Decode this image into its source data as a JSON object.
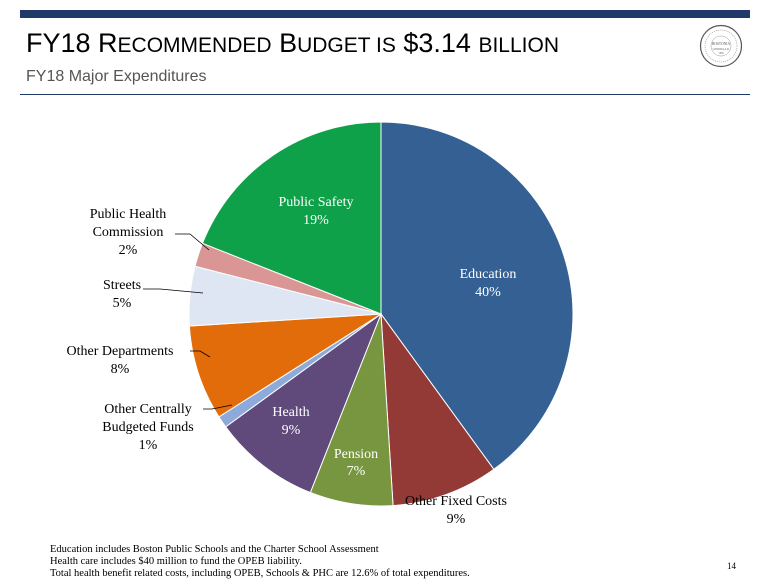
{
  "header": {
    "title_parts": [
      "FY18 R",
      "ECOMMENDED",
      " B",
      "UDGET IS",
      " $3.14 ",
      "BILLION"
    ],
    "subtitle": "FY18 Major Expenditures",
    "seal_text": [
      "BOSTONIA",
      "CONDITA A.D.",
      "1630"
    ]
  },
  "chart_data": {
    "type": "pie",
    "title": "",
    "slices": [
      {
        "name": "Education",
        "label": "Education",
        "value": 40,
        "pct": "40%",
        "color": "#346094"
      },
      {
        "name": "Other Fixed Costs",
        "label": "Other Fixed Costs",
        "value": 9,
        "pct": "9%",
        "color": "#943a36"
      },
      {
        "name": "Pension",
        "label": "Pension",
        "value": 7,
        "pct": "7%",
        "color": "#77963f"
      },
      {
        "name": "Health",
        "label": "Health",
        "value": 9,
        "pct": "9%",
        "color": "#5f4a7b"
      },
      {
        "name": "Other Centrally Budgeted Funds",
        "label": "Other Centrally Budgeted Funds",
        "value": 1,
        "pct": "1%",
        "color": "#8eaadb"
      },
      {
        "name": "Other Departments",
        "label": "Other Departments",
        "value": 8,
        "pct": "8%",
        "color": "#e36c0a"
      },
      {
        "name": "Streets",
        "label": "Streets",
        "value": 5,
        "pct": "5%",
        "color": "#dde6f2"
      },
      {
        "name": "Public Health Commission",
        "label": "Public Health Commission",
        "value": 2,
        "pct": "2%",
        "color": "#d99694"
      },
      {
        "name": "Public Safety",
        "label": "Public Safety",
        "value": 19,
        "pct": "19%",
        "color": "#0fa04a"
      }
    ]
  },
  "footnotes": [
    "Education includes Boston Public Schools and the Charter School Assessment",
    "Health care includes $40 million to fund the OPEB liability.",
    "Total health benefit related costs, including OPEB, Schools & PHC are 12.6% of total expenditures."
  ],
  "page_number": "14"
}
